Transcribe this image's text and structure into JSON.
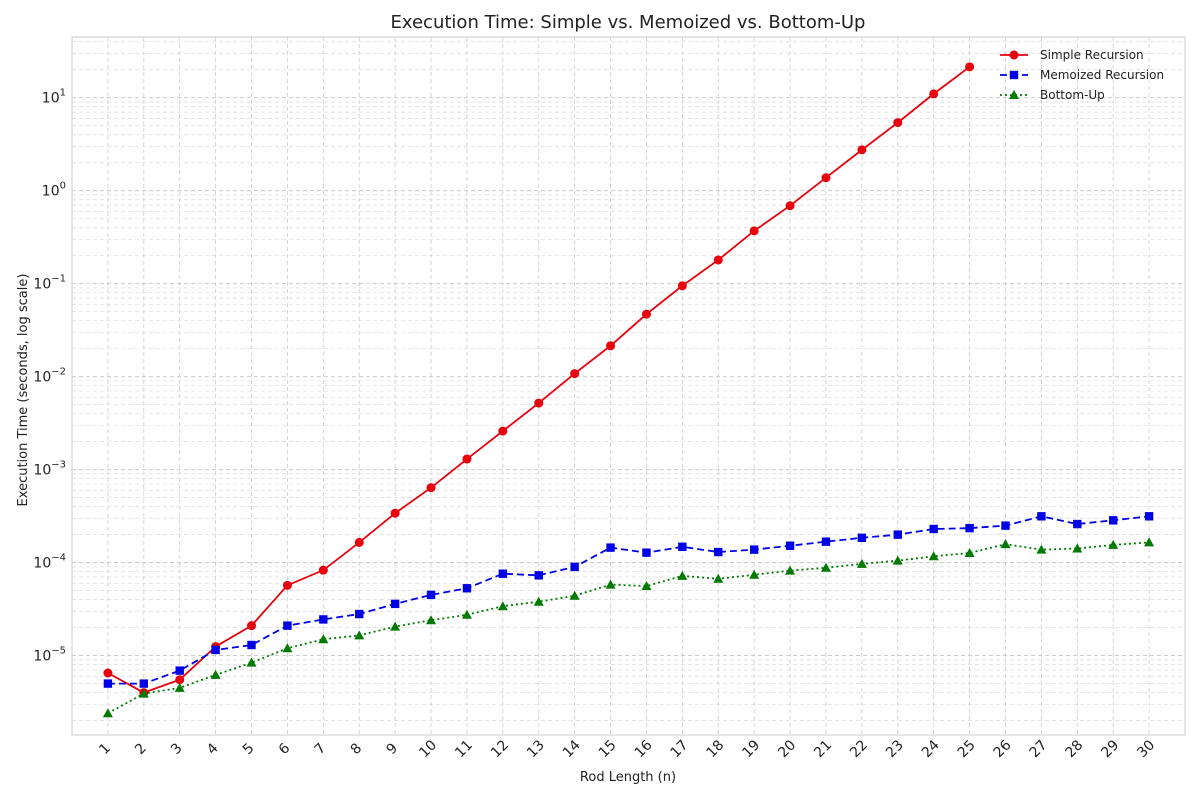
{
  "chart_data": {
    "type": "line",
    "title": "Execution Time: Simple vs. Memoized vs. Bottom-Up",
    "xlabel": "Rod Length (n)",
    "ylabel": "Execution Time (seconds, log scale)",
    "yscale": "log",
    "ylim": [
      1.4e-06,
      45
    ],
    "xlim": [
      0,
      31
    ],
    "grid": true,
    "legend_position": "top-right",
    "x": [
      1,
      2,
      3,
      4,
      5,
      6,
      7,
      8,
      9,
      10,
      11,
      12,
      13,
      14,
      15,
      16,
      17,
      18,
      19,
      20,
      21,
      22,
      23,
      24,
      25,
      26,
      27,
      28,
      29,
      30
    ],
    "x_tick_labels": [
      "1",
      "2",
      "3",
      "4",
      "5",
      "6",
      "7",
      "8",
      "9",
      "10",
      "11",
      "12",
      "13",
      "14",
      "15",
      "16",
      "17",
      "18",
      "19",
      "20",
      "21",
      "22",
      "23",
      "24",
      "25",
      "26",
      "27",
      "28",
      "29",
      "30"
    ],
    "y_tick_labels": [
      {
        "base": "10",
        "exp": "−5",
        "value": 1e-05
      },
      {
        "base": "10",
        "exp": "−4",
        "value": 0.0001
      },
      {
        "base": "10",
        "exp": "−3",
        "value": 0.001
      },
      {
        "base": "10",
        "exp": "−2",
        "value": 0.01
      },
      {
        "base": "10",
        "exp": "−1",
        "value": 0.1
      },
      {
        "base": "10",
        "exp": "0",
        "value": 1
      },
      {
        "base": "10",
        "exp": "1",
        "value": 10
      }
    ],
    "series": [
      {
        "name": "Simple Recursion",
        "color": "#e8000b",
        "marker": "circle",
        "linestyle": "solid",
        "x": [
          1,
          2,
          3,
          4,
          5,
          6,
          7,
          8,
          9,
          10,
          11,
          12,
          13,
          14,
          15,
          16,
          17,
          18,
          19,
          20,
          21,
          22,
          23,
          24,
          25
        ],
        "values": [
          6.5e-06,
          4e-06,
          5.5e-06,
          1.25e-05,
          2.1e-05,
          5.7e-05,
          8.3e-05,
          0.000165,
          0.00034,
          0.00064,
          0.0013,
          0.0026,
          0.0052,
          0.0108,
          0.0215,
          0.047,
          0.095,
          0.18,
          0.37,
          0.69,
          1.38,
          2.75,
          5.4,
          11.0,
          21.5
        ]
      },
      {
        "name": "Memoized Recursion",
        "color": "#0000e6",
        "marker": "square",
        "linestyle": "dashed",
        "x": [
          1,
          2,
          3,
          4,
          5,
          6,
          7,
          8,
          9,
          10,
          11,
          12,
          13,
          14,
          15,
          16,
          17,
          18,
          19,
          20,
          21,
          22,
          23,
          24,
          25,
          26,
          27,
          28,
          29,
          30
        ],
        "values": [
          5e-06,
          5e-06,
          6.9e-06,
          1.15e-05,
          1.3e-05,
          2.1e-05,
          2.45e-05,
          2.8e-05,
          3.6e-05,
          4.5e-05,
          5.3e-05,
          7.6e-05,
          7.3e-05,
          9e-05,
          0.000145,
          0.000128,
          0.000148,
          0.00013,
          0.000138,
          0.000152,
          0.000168,
          0.000185,
          0.0002,
          0.00023,
          0.000235,
          0.00025,
          0.000315,
          0.00026,
          0.000285,
          0.000315
        ]
      },
      {
        "name": "Bottom-Up",
        "color": "#007a00",
        "marker": "triangle",
        "linestyle": "dotted",
        "x": [
          1,
          2,
          3,
          4,
          5,
          6,
          7,
          8,
          9,
          10,
          11,
          12,
          13,
          14,
          15,
          16,
          17,
          18,
          19,
          20,
          21,
          22,
          23,
          24,
          25,
          26,
          27,
          28,
          29,
          30
        ],
        "values": [
          2.4e-06,
          3.9e-06,
          4.5e-06,
          6.2e-06,
          8.4e-06,
          1.2e-05,
          1.5e-05,
          1.65e-05,
          2.05e-05,
          2.4e-05,
          2.75e-05,
          3.4e-05,
          3.8e-05,
          4.4e-05,
          5.8e-05,
          5.6e-05,
          7.2e-05,
          6.7e-05,
          7.4e-05,
          8.2e-05,
          8.8e-05,
          9.7e-05,
          0.000105,
          0.000117,
          0.000127,
          0.000158,
          0.000138,
          0.000142,
          0.000155,
          0.000165
        ]
      }
    ]
  }
}
